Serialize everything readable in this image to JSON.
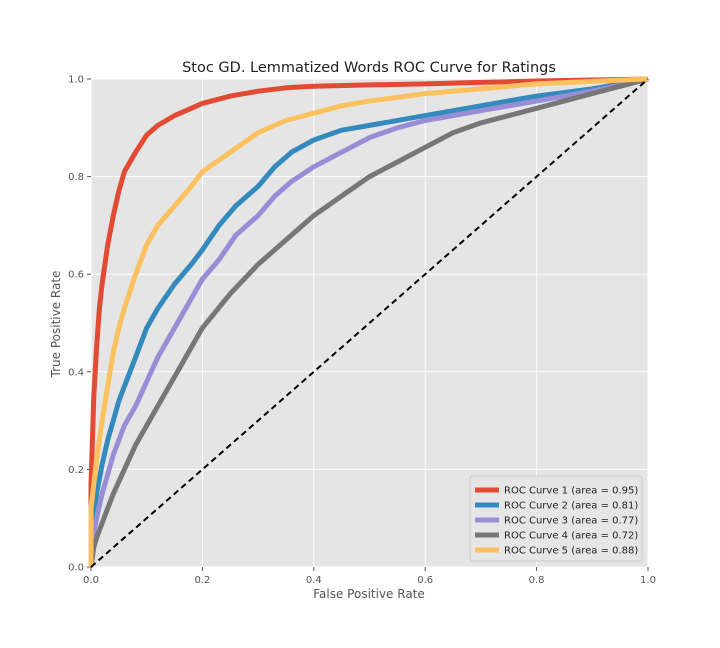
{
  "chart_data": {
    "type": "line",
    "title": "Stoc GD. Lemmatized Words ROC Curve for Ratings",
    "xlabel": "False Positive Rate",
    "ylabel": "True Positive Rate",
    "xlim": [
      0.0,
      1.0
    ],
    "ylim": [
      0.0,
      1.0
    ],
    "xticks": [
      "0.0",
      "0.2",
      "0.4",
      "0.6",
      "0.8",
      "1.0"
    ],
    "yticks": [
      "0.0",
      "0.2",
      "0.4",
      "0.6",
      "0.8",
      "1.0"
    ],
    "grid": true,
    "legend_position": "lower-right",
    "series": [
      {
        "name": "ROC Curve 1 (area = 0.95)",
        "color": "#E24A33",
        "x": [
          0,
          0,
          0.005,
          0.01,
          0.015,
          0.02,
          0.03,
          0.04,
          0.05,
          0.06,
          0.08,
          0.1,
          0.12,
          0.15,
          0.18,
          0.2,
          0.25,
          0.3,
          0.35,
          0.4,
          0.5,
          0.6,
          0.7,
          0.8,
          0.9,
          1.0
        ],
        "y": [
          0,
          0.17,
          0.35,
          0.45,
          0.53,
          0.58,
          0.66,
          0.72,
          0.77,
          0.81,
          0.85,
          0.885,
          0.905,
          0.925,
          0.94,
          0.95,
          0.965,
          0.975,
          0.982,
          0.985,
          0.988,
          0.99,
          0.993,
          0.996,
          0.998,
          1.0
        ]
      },
      {
        "name": "ROC Curve 2 (area = 0.81)",
        "color": "#348ABD",
        "x": [
          0,
          0.005,
          0.01,
          0.02,
          0.03,
          0.04,
          0.05,
          0.06,
          0.08,
          0.1,
          0.12,
          0.15,
          0.18,
          0.2,
          0.23,
          0.26,
          0.3,
          0.33,
          0.36,
          0.4,
          0.45,
          0.5,
          0.6,
          0.7,
          0.8,
          0.9,
          1.0
        ],
        "y": [
          0,
          0.1,
          0.15,
          0.21,
          0.26,
          0.3,
          0.34,
          0.37,
          0.43,
          0.49,
          0.53,
          0.58,
          0.62,
          0.65,
          0.7,
          0.74,
          0.78,
          0.82,
          0.85,
          0.875,
          0.895,
          0.905,
          0.925,
          0.945,
          0.965,
          0.98,
          1.0
        ]
      },
      {
        "name": "ROC Curve 3 (area = 0.77)",
        "color": "#988ED5",
        "x": [
          0,
          0.005,
          0.01,
          0.02,
          0.03,
          0.04,
          0.06,
          0.08,
          0.1,
          0.12,
          0.15,
          0.18,
          0.2,
          0.23,
          0.26,
          0.3,
          0.33,
          0.36,
          0.4,
          0.45,
          0.5,
          0.55,
          0.6,
          0.7,
          0.8,
          0.9,
          1.0
        ],
        "y": [
          0,
          0.07,
          0.1,
          0.15,
          0.19,
          0.23,
          0.29,
          0.33,
          0.38,
          0.43,
          0.49,
          0.55,
          0.59,
          0.63,
          0.68,
          0.72,
          0.76,
          0.79,
          0.82,
          0.85,
          0.88,
          0.9,
          0.915,
          0.935,
          0.955,
          0.975,
          1.0
        ]
      },
      {
        "name": "ROC Curve 4 (area = 0.72)",
        "color": "#777777",
        "x": [
          0,
          0.005,
          0.01,
          0.02,
          0.03,
          0.04,
          0.06,
          0.08,
          0.1,
          0.12,
          0.15,
          0.18,
          0.2,
          0.25,
          0.3,
          0.35,
          0.4,
          0.45,
          0.5,
          0.55,
          0.6,
          0.65,
          0.7,
          0.8,
          0.9,
          1.0
        ],
        "y": [
          0,
          0.04,
          0.06,
          0.09,
          0.12,
          0.15,
          0.2,
          0.25,
          0.29,
          0.33,
          0.39,
          0.45,
          0.49,
          0.56,
          0.62,
          0.67,
          0.72,
          0.76,
          0.8,
          0.83,
          0.86,
          0.89,
          0.91,
          0.94,
          0.97,
          1.0
        ]
      },
      {
        "name": "ROC Curve 5 (area = 0.88)",
        "color": "#FBC15E",
        "x": [
          0,
          0,
          0.005,
          0.01,
          0.02,
          0.03,
          0.04,
          0.05,
          0.06,
          0.08,
          0.1,
          0.12,
          0.15,
          0.18,
          0.2,
          0.25,
          0.3,
          0.35,
          0.4,
          0.45,
          0.5,
          0.6,
          0.7,
          0.8,
          0.9,
          1.0
        ],
        "y": [
          0,
          0.12,
          0.17,
          0.22,
          0.3,
          0.37,
          0.44,
          0.49,
          0.53,
          0.6,
          0.66,
          0.7,
          0.74,
          0.78,
          0.81,
          0.85,
          0.89,
          0.915,
          0.93,
          0.945,
          0.955,
          0.97,
          0.98,
          0.99,
          0.995,
          1.0
        ]
      }
    ],
    "reference_line": {
      "color": "#000000",
      "style": "dashed",
      "x": [
        0,
        1
      ],
      "y": [
        0,
        1
      ]
    }
  }
}
